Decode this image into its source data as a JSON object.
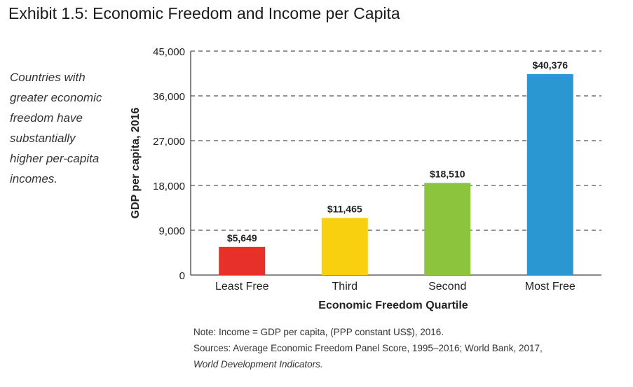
{
  "title": "Exhibit 1.5: Economic Freedom and Income per Capita",
  "caption_lines": [
    "Countries with",
    "greater economic",
    "freedom have",
    "substantially",
    "higher per-capita",
    "incomes."
  ],
  "note": {
    "line1": "Note: Income = GDP per capita, (PPP constant US$), 2016.",
    "line2": "Sources: Average Economic Freedom Panel Score, 1995–2016; World Bank, 2017,",
    "line3": "World Development Indicators."
  },
  "chart_data": {
    "type": "bar",
    "categories": [
      "Least Free",
      "Third",
      "Second",
      "Most Free"
    ],
    "values": [
      5649,
      11465,
      18510,
      40376
    ],
    "data_labels": [
      "$5,649",
      "$11,465",
      "$18,510",
      "$40,376"
    ],
    "colors": [
      "#e8302a",
      "#f9d00f",
      "#8cc43d",
      "#2a97d3"
    ],
    "xlabel": "Economic Freedom Quartile",
    "ylabel": "GDP per capita, 2016",
    "ylim": [
      0,
      45000
    ],
    "yticks": [
      0,
      9000,
      18000,
      27000,
      36000,
      45000
    ],
    "ytick_labels": [
      "0",
      "9,000",
      "18,000",
      "27,000",
      "36,000",
      "45,000"
    ],
    "grid": "dashed horizontal"
  }
}
